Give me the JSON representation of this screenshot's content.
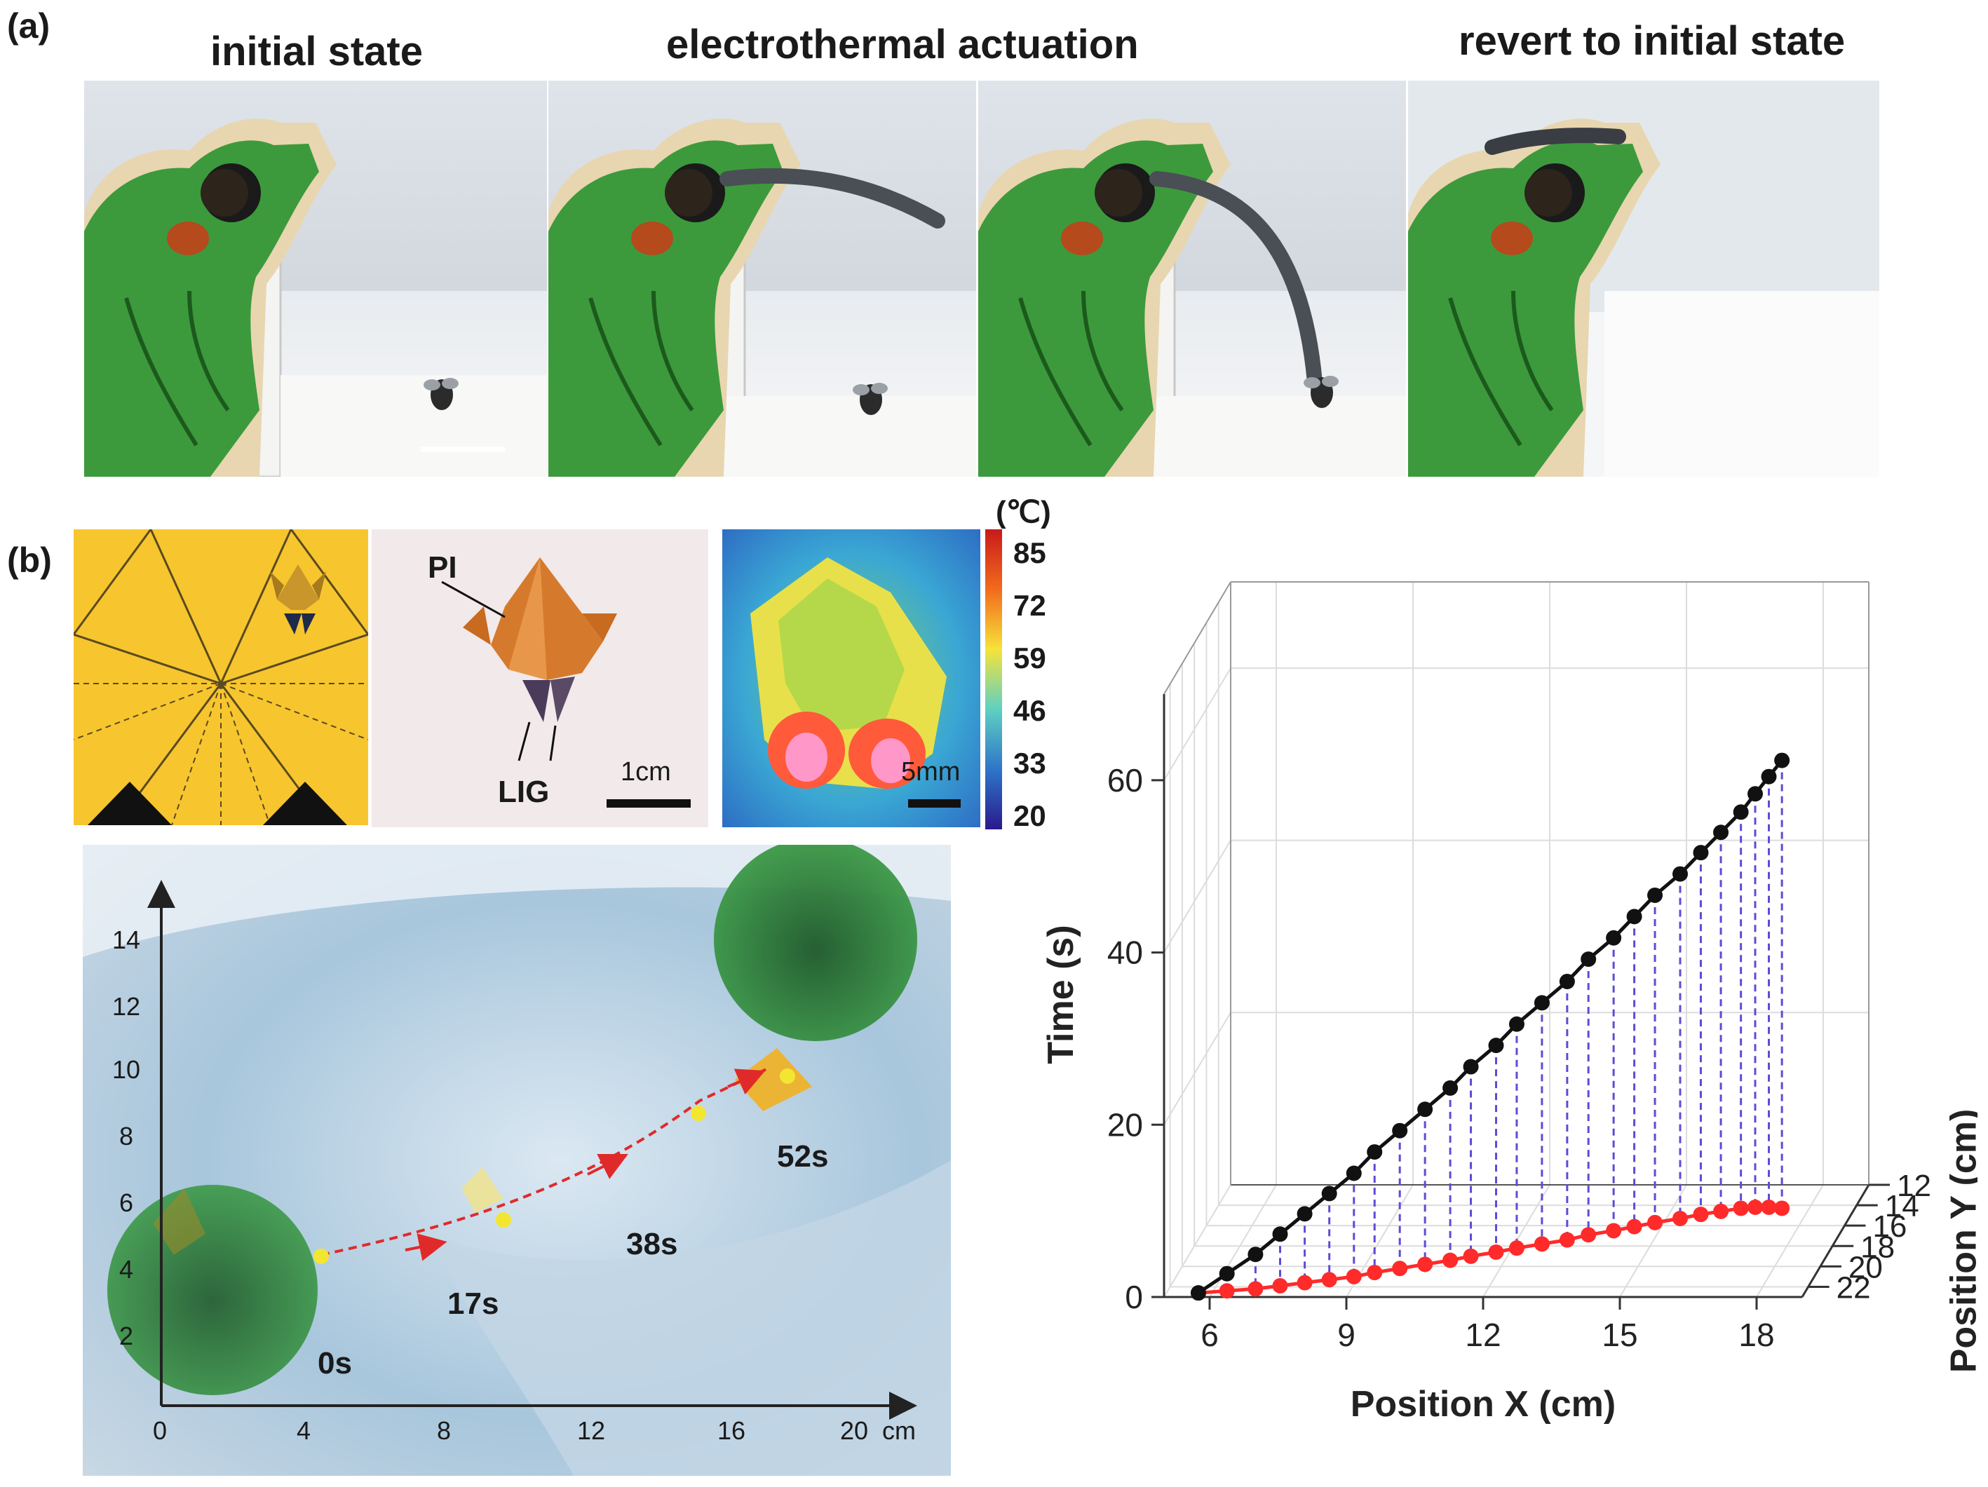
{
  "panel_a": {
    "label": "(a)",
    "headers": [
      "initial state",
      "electrothermal actuation",
      "revert to initial state"
    ]
  },
  "panel_b": {
    "label": "(b)",
    "photo_labels": {
      "pi": "PI",
      "lig": "LIG",
      "scale_1cm": "1cm",
      "scale_5mm": "5mm"
    },
    "colorbar": {
      "unit": "(℃)",
      "ticks": [
        "85",
        "72",
        "59",
        "46",
        "33",
        "20"
      ]
    },
    "trajectory_map": {
      "x_ticks": [
        "0",
        "4",
        "8",
        "12",
        "16",
        "20"
      ],
      "x_unit": "cm",
      "y_ticks": [
        "14",
        "12",
        "10",
        "8",
        "6",
        "4",
        "2"
      ],
      "time_labels": [
        "0s",
        "17s",
        "38s",
        "52s"
      ]
    }
  },
  "chart_data": {
    "type": "line3d",
    "xlabel": "Position X (cm)",
    "ylabel": "Position Y (cm)",
    "zlabel": "Time (s)",
    "xlim": [
      5,
      19
    ],
    "ylim": [
      12,
      23
    ],
    "zlim": [
      0,
      70
    ],
    "x_ticks": [
      "6",
      "9",
      "12",
      "15",
      "18"
    ],
    "y_ticks": [
      "12",
      "14",
      "16",
      "18",
      "20",
      "22"
    ],
    "z_ticks": [
      "60",
      "40",
      "20",
      "0"
    ],
    "series": [
      {
        "color": "#111111",
        "x": [
          5.7,
          6.3,
          6.9,
          7.4,
          7.9,
          8.4,
          8.9,
          9.3,
          9.8,
          10.3,
          10.8,
          11.2,
          11.7,
          12.1,
          12.6,
          13.1,
          13.5,
          14.0,
          14.4,
          14.8,
          15.3,
          15.7,
          16.1,
          16.5,
          16.8,
          17.1,
          17.4
        ],
        "y": [
          22.6,
          22.4,
          22.2,
          21.9,
          21.6,
          21.3,
          21.0,
          20.6,
          20.2,
          19.8,
          19.4,
          19.0,
          18.6,
          18.2,
          17.8,
          17.4,
          16.9,
          16.5,
          16.1,
          15.7,
          15.3,
          14.9,
          14.6,
          14.3,
          14.2,
          14.2,
          14.3
        ],
        "t": [
          0,
          2,
          4,
          6,
          8,
          10,
          12,
          14,
          16,
          18,
          20,
          22,
          24,
          26,
          28,
          30,
          32,
          34,
          36,
          38,
          40,
          42,
          44,
          46,
          48,
          50,
          52
        ]
      }
    ],
    "projection_color": "#ff2a2a",
    "drop_line_color": "#5b4cd6"
  }
}
